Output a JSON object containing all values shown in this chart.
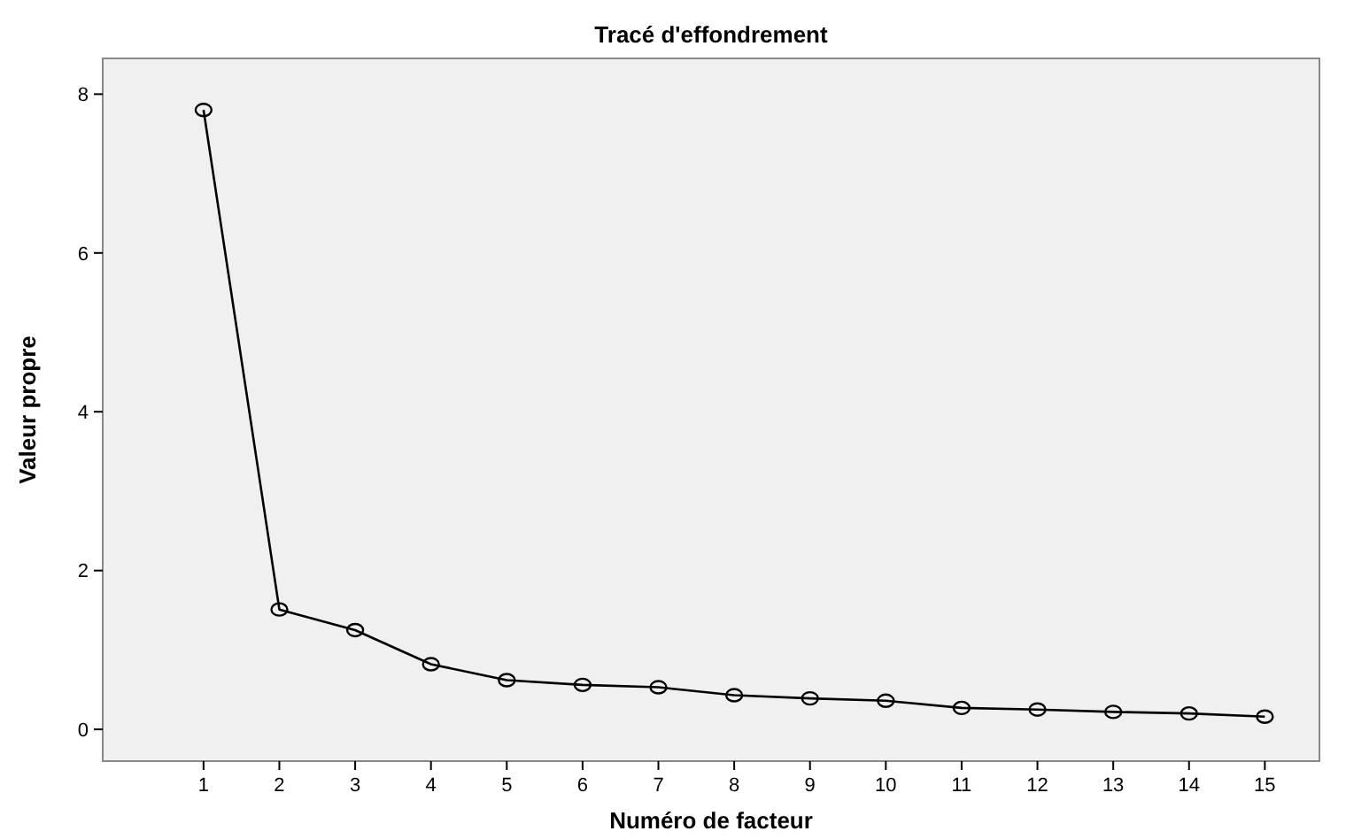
{
  "chart_data": {
    "type": "line",
    "title": "Tracé d'effondrement",
    "xlabel": "Numéro de facteur",
    "ylabel": "Valeur propre",
    "x": [
      1,
      2,
      3,
      4,
      5,
      6,
      7,
      8,
      9,
      10,
      11,
      12,
      13,
      14,
      15
    ],
    "series": [
      {
        "color": "#000000",
        "values": [
          7.8,
          1.51,
          1.25,
          0.82,
          0.62,
          0.56,
          0.53,
          0.43,
          0.39,
          0.36,
          0.27,
          0.25,
          0.22,
          0.2,
          0.16
        ]
      }
    ],
    "xlim": [
      -0.33,
      15.72
    ],
    "xticks": [
      1,
      2,
      3,
      4,
      5,
      6,
      7,
      8,
      9,
      10,
      11,
      12,
      13,
      14,
      15
    ],
    "ylim": [
      -0.4,
      8.45
    ],
    "yticks": [
      0,
      2,
      4,
      6,
      8
    ],
    "grid": false,
    "marker": "circle",
    "line_style": "solid"
  }
}
